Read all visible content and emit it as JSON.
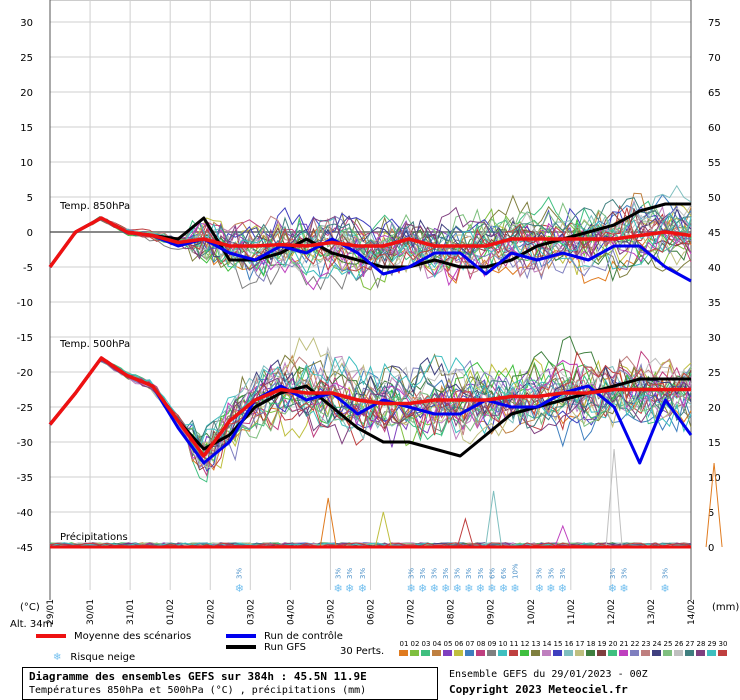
{
  "chart_data": {
    "type": "line",
    "title": "Diagramme des ensembles GEFS sur 384h : 45.5N 11.9E",
    "subtitle": "Températures 850hPa et 500hPa (°C) , précipitations (mm)",
    "y_left_label": "(°C)",
    "y_right_label": "(mm)",
    "altitude_label": "Alt. 34m",
    "y_left_ticks": [
      "30",
      "25",
      "20",
      "15",
      "10",
      "5",
      "0",
      "-5",
      "-10",
      "-15",
      "-20",
      "-25",
      "-30",
      "-35",
      "-40",
      "-45"
    ],
    "y_right_ticks": [
      "75",
      "70",
      "65",
      "60",
      "55",
      "50",
      "45",
      "40",
      "35",
      "30",
      "25",
      "20",
      "15",
      "10",
      "5",
      "0"
    ],
    "ylim_left": [
      -45,
      30
    ],
    "ylim_right": [
      0,
      75
    ],
    "x_dates": [
      "29/01",
      "30/01",
      "31/01",
      "01/02",
      "02/02",
      "03/02",
      "04/02",
      "05/02",
      "06/02",
      "07/02",
      "08/02",
      "09/02",
      "10/02",
      "11/02",
      "12/02",
      "13/02",
      "14/02"
    ],
    "panel_labels": {
      "t850": "Temp. 850hPa",
      "t500": "Temp. 500hPa",
      "precip": "Précipitations"
    },
    "grid": true,
    "t850": {
      "mean": [
        -5,
        0,
        2,
        0,
        -0.5,
        -1.5,
        -1,
        -2,
        -2,
        -1.8,
        -2,
        -1.5,
        -2,
        -2,
        -1,
        -2,
        -2,
        -2,
        -1,
        -1,
        -1,
        -1,
        -1,
        -0.5,
        0,
        -0.5
      ],
      "control": [
        -5,
        0,
        2,
        0,
        -0.5,
        -2,
        -1,
        -3,
        -4,
        -2,
        -3,
        -1,
        -3,
        -6,
        -5,
        -3,
        -3,
        -6,
        -3,
        -4,
        -3,
        -4,
        -2,
        -2,
        -5,
        -7
      ],
      "gfs": [
        -5,
        0,
        2,
        0,
        -0.5,
        -1,
        2,
        -4,
        -4,
        -3,
        -1,
        -3,
        -4,
        -5,
        -5,
        -4,
        -5,
        -5,
        -4,
        -2,
        -1,
        0,
        1,
        3,
        4,
        4
      ]
    },
    "t500": {
      "mean": [
        -27.5,
        -23,
        -18,
        -20.5,
        -22,
        -27,
        -32,
        -27,
        -24,
        -22.5,
        -23,
        -23,
        -24,
        -24.5,
        -24.5,
        -24,
        -24,
        -24,
        -23.5,
        -23.5,
        -23,
        -23,
        -22.5,
        -22.5,
        -22.5,
        -22.5
      ],
      "control": [
        -27.5,
        -23,
        -18,
        -20.5,
        -22,
        -28,
        -33,
        -30,
        -24,
        -22,
        -24,
        -23,
        -26,
        -24,
        -25,
        -26,
        -26,
        -24,
        -25,
        -25,
        -23,
        -22,
        -25,
        -33,
        -24,
        -29
      ],
      "gfs": [
        -27.5,
        -23,
        -18,
        -20.5,
        -22,
        -27,
        -31,
        -29,
        -25,
        -23,
        -22,
        -25,
        -28,
        -30,
        -30,
        -31,
        -32,
        -29,
        -26,
        -25,
        -24,
        -23,
        -22,
        -21,
        -21,
        -21
      ]
    },
    "precip_perturbation_peaks": [
      {
        "x": 10.85,
        "y": 7
      },
      {
        "x": 13.0,
        "y": 5
      },
      {
        "x": 16.2,
        "y": 4
      },
      {
        "x": 17.3,
        "y": 8
      },
      {
        "x": 20.0,
        "y": 3
      },
      {
        "x": 22.0,
        "y": 14
      },
      {
        "x": 25.9,
        "y": 12
      }
    ],
    "snow_markers": [
      {
        "x": 7.4,
        "labels": [
          "3%"
        ]
      },
      {
        "x": 11.25,
        "labels": [
          "3%"
        ]
      },
      {
        "x": 11.7,
        "labels": [
          "3%"
        ]
      },
      {
        "x": 12.2,
        "labels": [
          "3%"
        ]
      },
      {
        "x": 14.1,
        "labels": [
          "3%"
        ]
      },
      {
        "x": 14.55,
        "labels": [
          "3%"
        ]
      },
      {
        "x": 15.0,
        "labels": [
          "3%"
        ]
      },
      {
        "x": 15.45,
        "labels": [
          "3%"
        ]
      },
      {
        "x": 15.9,
        "labels": [
          "3%"
        ]
      },
      {
        "x": 16.35,
        "labels": [
          "3%"
        ]
      },
      {
        "x": 16.8,
        "labels": [
          "3%"
        ]
      },
      {
        "x": 17.25,
        "labels": [
          "6%"
        ]
      },
      {
        "x": 17.7,
        "labels": [
          "6%"
        ]
      },
      {
        "x": 18.15,
        "labels": [
          "10%"
        ]
      },
      {
        "x": 19.1,
        "labels": [
          "3%"
        ]
      },
      {
        "x": 19.55,
        "labels": [
          "3%"
        ]
      },
      {
        "x": 20.0,
        "labels": [
          "3%"
        ]
      },
      {
        "x": 21.95,
        "labels": [
          "3%"
        ]
      },
      {
        "x": 22.4,
        "labels": [
          "3%"
        ]
      },
      {
        "x": 24.0,
        "labels": [
          "3%"
        ]
      }
    ],
    "legend": {
      "mean": "Moyenne des scénarios",
      "control": "Run de contrôle",
      "gfs": "Run GFS",
      "snow": "Risque neige",
      "perts": "30 Perts."
    },
    "perturbation_ids": [
      "01",
      "02",
      "03",
      "04",
      "05",
      "06",
      "07",
      "08",
      "09",
      "10",
      "11",
      "12",
      "13",
      "14",
      "15",
      "16",
      "17",
      "18",
      "19",
      "20",
      "21",
      "22",
      "23",
      "24",
      "25",
      "26",
      "27",
      "28",
      "29",
      "30"
    ],
    "perturbation_colors": [
      "#e07b1f",
      "#7fbf3f",
      "#3fbf7f",
      "#bf7f3f",
      "#7f3fbf",
      "#bfbf3f",
      "#3f7fbf",
      "#bf3f7f",
      "#7f7f7f",
      "#3fbfbf",
      "#bf3f3f",
      "#3fbf3f",
      "#7f7f3f",
      "#bf7fbf",
      "#3f3fbf",
      "#7fbfbf",
      "#bfbf7f",
      "#3f7f3f",
      "#7f3f3f",
      "#3fbf7f",
      "#bf3fbf",
      "#7f7fbf",
      "#bf7f7f",
      "#3f3f7f",
      "#7fbf7f",
      "#bfbfbf",
      "#3f7f7f",
      "#7f3f7f",
      "#3fbfbf",
      "#bf3f3f"
    ],
    "colors": {
      "mean": "#ee1111",
      "control": "#0000ee",
      "gfs": "#000000",
      "snow": "#74c0ef"
    }
  },
  "footer": {
    "title": "Diagramme des ensembles GEFS sur 384h : 45.5N 11.9E",
    "subtitle": "Températures 850hPa et 500hPa (°C) , précipitations (mm)",
    "run": "Ensemble GEFS du 29/01/2023 - 00Z",
    "copyright": "Copyright 2023 Meteociel.fr"
  }
}
